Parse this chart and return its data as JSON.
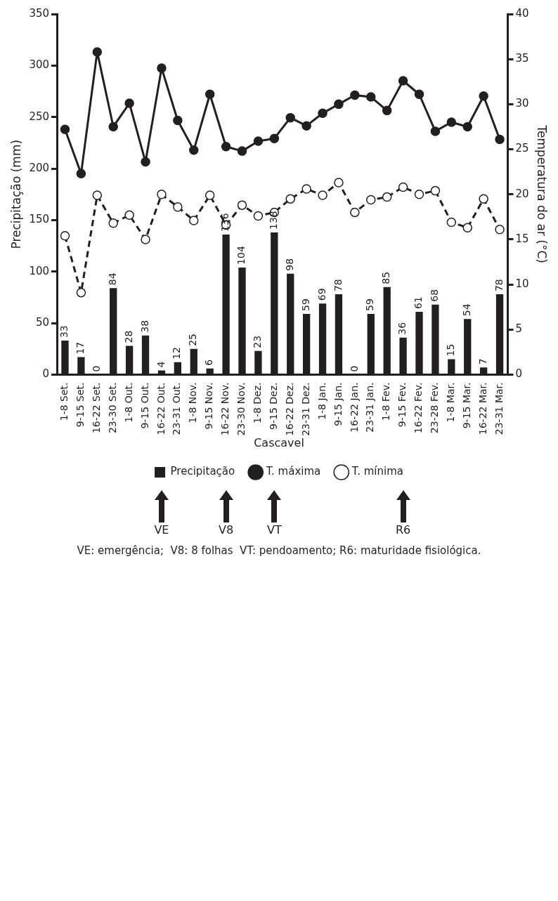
{
  "chart_data": {
    "type": "bar",
    "legend_title": "Cascavel",
    "ylabel": "Precipitação (mm)",
    "y2label": "Temperatura do ar (°C)",
    "categories": [
      "1-8 Set.",
      "9-15 Set.",
      "16-22 Set.",
      "23-30 Set.",
      "1-8 Out.",
      "9-15 Out.",
      "16-22 Out.",
      "23-31 Out.",
      "1-8 Nov.",
      "9-15 Nov.",
      "16-22 Nov.",
      "23-30 Nov.",
      "1-8 Dez.",
      "9-15 Dez.",
      "16-22 Dez.",
      "23-31 Dez.",
      "1-8 Jan.",
      "9-15 Jan.",
      "16-22 Jan.",
      "23-31 Jan.",
      "1-8 Fev.",
      "9-15 Fev.",
      "16-22 Fev.",
      "23-28 Fev.",
      "1-8 Mar.",
      "9-15 Mar.",
      "16-22 Mar.",
      "23-31 Mar."
    ],
    "series": [
      {
        "name": "Precipitação",
        "type": "bar",
        "color": "#231f20",
        "values": [
          33,
          17,
          0,
          84,
          28,
          38,
          4,
          12,
          25,
          6,
          136,
          104,
          23,
          138,
          98,
          59,
          69,
          78,
          0,
          59,
          85,
          36,
          61,
          68,
          15,
          54,
          7,
          78
        ],
        "value_labels": [
          "33",
          "17",
          "0",
          "84",
          "28",
          "38",
          "4",
          "12",
          "25",
          "6",
          "136",
          "104",
          "23",
          "138",
          "98",
          "59",
          "69",
          "78",
          "0",
          "59",
          "85",
          "36",
          "61",
          "68",
          "15",
          "54",
          "7",
          "78"
        ]
      },
      {
        "name": "T. máxima",
        "type": "line",
        "axis": "y2",
        "color": "#231f20",
        "marker": "circle",
        "line_style": "solid",
        "values": [
          27.2,
          22.3,
          35.8,
          27.5,
          30.1,
          23.6,
          34.0,
          28.2,
          24.9,
          31.1,
          25.3,
          24.8,
          25.9,
          26.2,
          28.5,
          27.6,
          29.0,
          30.0,
          31.0,
          30.8,
          29.3,
          32.6,
          31.1,
          27.0,
          28.0,
          27.5,
          30.9,
          26.1
        ]
      },
      {
        "name": "T. mínima",
        "type": "line",
        "axis": "y2",
        "color": "#231f20",
        "marker": "circle",
        "line_style": "dashed",
        "values": [
          15.4,
          9.1,
          19.9,
          16.8,
          17.7,
          15.0,
          20.0,
          18.6,
          17.1,
          19.9,
          16.6,
          18.8,
          17.6,
          18.0,
          19.5,
          20.6,
          19.9,
          21.3,
          18.0,
          19.4,
          19.7,
          20.8,
          20.0,
          20.4,
          16.9,
          16.3,
          19.5,
          16.1
        ]
      }
    ],
    "ylim": [
      0,
      350
    ],
    "yticks": [
      0,
      50,
      100,
      150,
      200,
      250,
      300,
      350
    ],
    "y2lim": [
      0,
      40
    ],
    "y2ticks": [
      0,
      5,
      10,
      15,
      20,
      25,
      30,
      35,
      40
    ],
    "grid": false,
    "legend": "bottom",
    "annotations": [
      "VE",
      "V8",
      "VT",
      "R6",
      "VE: emergência;  V8: 8 folhas  VT: pendoamento; R6: maturidade fisiológica."
    ]
  }
}
